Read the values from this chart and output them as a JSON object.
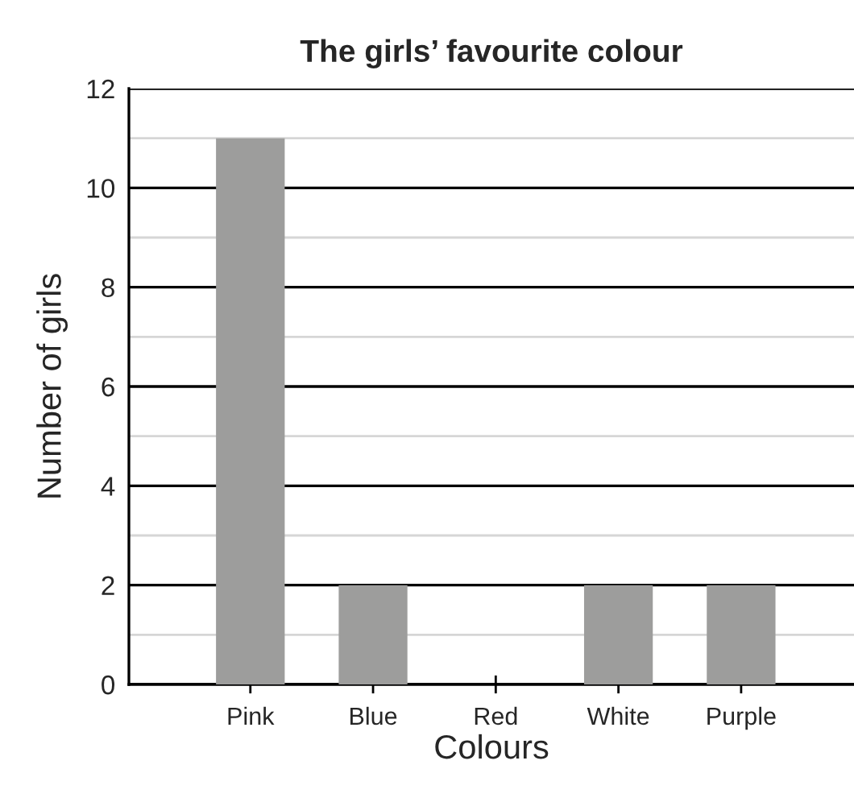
{
  "chart_data": {
    "type": "bar",
    "title": "The girls’ favourite colour",
    "xlabel": "Colours",
    "ylabel": "Number of girls",
    "categories": [
      "Pink",
      "Blue",
      "Red",
      "White",
      "Purple"
    ],
    "values": [
      11,
      2,
      0,
      2,
      2
    ],
    "color": "#9d9d9c",
    "ylim": [
      0,
      12
    ],
    "yticks": [
      0,
      {
        "value": 1,
        "label": null
      },
      2,
      {
        "value": 3,
        "label": null
      },
      4,
      {
        "value": 5,
        "label": null
      },
      6,
      {
        "value": 7,
        "label": null
      },
      8,
      {
        "value": 9,
        "label": null
      },
      10,
      {
        "value": 11,
        "label": null
      },
      12
    ],
    "grid": "y",
    "legend": false
  }
}
